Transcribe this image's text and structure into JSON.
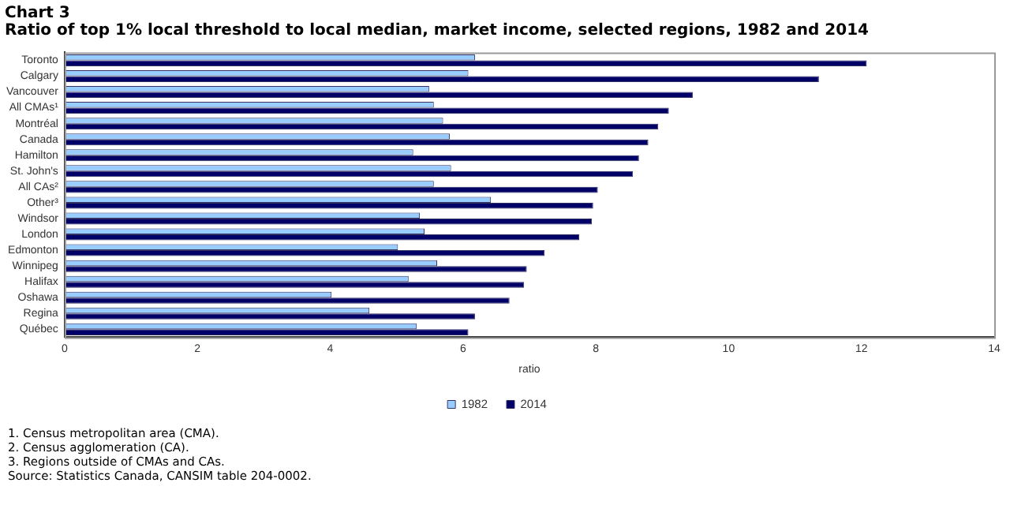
{
  "chart_data": {
    "type": "bar",
    "orientation": "horizontal",
    "title": "Chart 3",
    "subtitle": "Ratio of top 1% local threshold to local median, market income, selected regions, 1982 and 2014",
    "categories": [
      "Toronto",
      "Calgary",
      "Vancouver",
      "All CMAs¹",
      "Montréal",
      "Canada",
      "Hamilton",
      "St. John's",
      "All CAs²",
      "Other³",
      "Windsor",
      "London",
      "Edmonton",
      "Winnipeg",
      "Halifax",
      "Oshawa",
      "Regina",
      "Québec"
    ],
    "series": [
      {
        "name": "1982",
        "color": "#99ccff",
        "values": [
          6.18,
          6.08,
          5.49,
          5.56,
          5.7,
          5.8,
          5.25,
          5.82,
          5.56,
          6.42,
          5.35,
          5.42,
          5.02,
          5.61,
          5.18,
          4.02,
          4.59,
          5.3
        ]
      },
      {
        "name": "2014",
        "color": "#000066",
        "values": [
          12.08,
          11.36,
          9.46,
          9.1,
          8.94,
          8.79,
          8.65,
          8.56,
          8.03,
          7.96,
          7.94,
          7.75,
          7.23,
          6.96,
          6.92,
          6.7,
          6.18,
          6.08
        ]
      }
    ],
    "xlabel": "ratio",
    "xlim": [
      0,
      14
    ],
    "xticks": [
      0,
      2,
      4,
      6,
      8,
      10,
      12,
      14
    ],
    "grid": false,
    "legend": "bottom",
    "annotations": [
      "1. Census metropolitan area (CMA).",
      "2. Census agglomeration (CA).",
      "3. Regions outside of CMAs and CAs.",
      "Source: Statistics Canada, CANSIM table 204-0002."
    ]
  }
}
